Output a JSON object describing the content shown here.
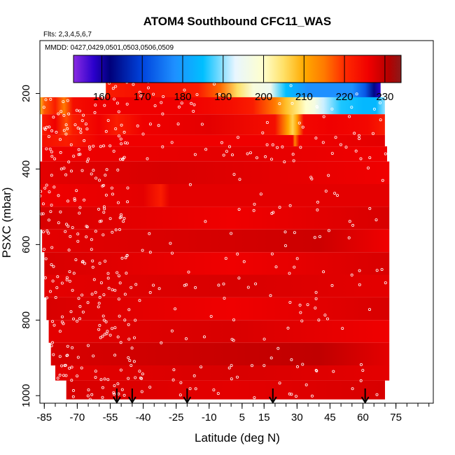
{
  "chart_data": {
    "type": "heatmap",
    "title": "ATOM4 Southbound CFC11_WAS",
    "subtitle_flights": "Flts: 2,3,4,5,6,7",
    "subtitle_dates": "MMDD: 0427,0429,0501,0503,0506,0509",
    "xlabel": "Latitude (deg N)",
    "ylabel": "PSXC (mbar)",
    "xlim": [
      -87,
      92
    ],
    "ylim": [
      1020,
      60
    ],
    "y_reversed": true,
    "x_ticks": [
      -85,
      -70,
      -55,
      -40,
      -25,
      -10,
      5,
      15,
      30,
      45,
      60,
      75
    ],
    "x_tick_labels": [
      "-85",
      "-70",
      "-55",
      "-40",
      "-25",
      "-10",
      "5",
      "15",
      "30",
      "45",
      "60",
      "75"
    ],
    "y_ticks": [
      200,
      400,
      600,
      800,
      1000
    ],
    "y_tick_labels": [
      "200",
      "400",
      "600",
      "800",
      "1000"
    ],
    "colorbar": {
      "min": 153,
      "max": 234,
      "ticks": [
        160,
        170,
        180,
        190,
        200,
        210,
        220,
        230
      ],
      "tick_labels": [
        "160",
        "170",
        "180",
        "190",
        "200",
        "210",
        "220",
        "230"
      ],
      "colors": [
        {
          "v": 153,
          "c": "#8a2be2"
        },
        {
          "v": 158,
          "c": "#2b00cc"
        },
        {
          "v": 162,
          "c": "#00007a"
        },
        {
          "v": 170,
          "c": "#0044dd"
        },
        {
          "v": 178,
          "c": "#1e90ff"
        },
        {
          "v": 185,
          "c": "#00bfff"
        },
        {
          "v": 193,
          "c": "#e8f6ff"
        },
        {
          "v": 200,
          "c": "#ffffcc"
        },
        {
          "v": 205,
          "c": "#ffe066"
        },
        {
          "v": 210,
          "c": "#ffaa00"
        },
        {
          "v": 215,
          "c": "#ff7a00"
        },
        {
          "v": 220,
          "c": "#ff2a00"
        },
        {
          "v": 226,
          "c": "#f00000"
        },
        {
          "v": 231,
          "c": "#b40000"
        },
        {
          "v": 234,
          "c": "#8b1a1a"
        }
      ]
    },
    "arrow_latitudes": [
      -52,
      -45,
      -20,
      19,
      61
    ],
    "pressure_bands": [
      {
        "p_top": 155,
        "p_bot": 210,
        "lat_min": -57,
        "lat_max": 68,
        "values": [
          [
            -57,
            222
          ],
          [
            -40,
            224
          ],
          [
            -25,
            223
          ],
          [
            -15,
            222
          ],
          [
            -5,
            216
          ],
          [
            3,
            205
          ],
          [
            10,
            198
          ],
          [
            18,
            195
          ],
          [
            25,
            185
          ],
          [
            35,
            178
          ],
          [
            45,
            178
          ],
          [
            55,
            178
          ],
          [
            61,
            172
          ],
          [
            65,
            163
          ],
          [
            68,
            158
          ]
        ]
      },
      {
        "p_top": 210,
        "p_bot": 255,
        "lat_min": -87,
        "lat_max": 70,
        "values": [
          [
            -87,
            208
          ],
          [
            -85,
            217
          ],
          [
            -80,
            222
          ],
          [
            -76,
            215
          ],
          [
            -72,
            224
          ],
          [
            -60,
            226
          ],
          [
            -40,
            226
          ],
          [
            -20,
            226
          ],
          [
            0,
            224
          ],
          [
            10,
            222
          ],
          [
            20,
            215
          ],
          [
            25,
            208
          ],
          [
            30,
            204
          ],
          [
            34,
            200
          ],
          [
            38,
            197
          ],
          [
            42,
            192
          ],
          [
            50,
            186
          ],
          [
            60,
            184
          ],
          [
            66,
            184
          ],
          [
            70,
            190
          ]
        ]
      },
      {
        "p_top": 255,
        "p_bot": 310,
        "lat_min": -86,
        "lat_max": 70,
        "values": [
          [
            -86,
            222
          ],
          [
            -80,
            226
          ],
          [
            -75,
            218
          ],
          [
            -72,
            222
          ],
          [
            -60,
            226
          ],
          [
            -52,
            222
          ],
          [
            -40,
            226
          ],
          [
            -10,
            227
          ],
          [
            20,
            224
          ],
          [
            26,
            210
          ],
          [
            28,
            206
          ],
          [
            30,
            211
          ],
          [
            33,
            225
          ],
          [
            45,
            226
          ],
          [
            62,
            225
          ],
          [
            70,
            222
          ]
        ]
      },
      {
        "p_top": 310,
        "p_bot": 340,
        "lat_min": -86,
        "lat_max": 70,
        "values": [
          [
            -86,
            224
          ],
          [
            -75,
            222
          ],
          [
            -60,
            226
          ],
          [
            28,
            226
          ],
          [
            29,
            214
          ],
          [
            31,
            226
          ],
          [
            70,
            227
          ]
        ]
      },
      {
        "p_top": 340,
        "p_bot": 380,
        "lat_min": -86,
        "lat_max": 71,
        "values": [
          [
            -86,
            226
          ],
          [
            0,
            227
          ],
          [
            71,
            226
          ]
        ]
      },
      {
        "p_top": 380,
        "p_bot": 440,
        "lat_min": -87,
        "lat_max": 72,
        "values": [
          [
            -87,
            227
          ],
          [
            -30,
            228
          ],
          [
            20,
            227
          ],
          [
            72,
            226
          ]
        ]
      },
      {
        "p_top": 440,
        "p_bot": 500,
        "lat_min": -87,
        "lat_max": 72,
        "values": [
          [
            -87,
            226
          ],
          [
            -40,
            227
          ],
          [
            -32,
            222
          ],
          [
            -28,
            227
          ],
          [
            72,
            227
          ]
        ]
      },
      {
        "p_top": 500,
        "p_bot": 560,
        "lat_min": -87,
        "lat_max": 72,
        "values": [
          [
            -87,
            228
          ],
          [
            0,
            226
          ],
          [
            72,
            228
          ]
        ]
      },
      {
        "p_top": 560,
        "p_bot": 620,
        "lat_min": -86,
        "lat_max": 72,
        "values": [
          [
            -86,
            227
          ],
          [
            40,
            229
          ],
          [
            72,
            226
          ]
        ]
      },
      {
        "p_top": 620,
        "p_bot": 680,
        "lat_min": -85,
        "lat_max": 72,
        "values": [
          [
            -85,
            228
          ],
          [
            0,
            226
          ],
          [
            72,
            228
          ]
        ]
      },
      {
        "p_top": 680,
        "p_bot": 740,
        "lat_min": -85,
        "lat_max": 72,
        "values": [
          [
            -85,
            227
          ],
          [
            0,
            228
          ],
          [
            72,
            227
          ]
        ]
      },
      {
        "p_top": 740,
        "p_bot": 800,
        "lat_min": -84,
        "lat_max": 72,
        "values": [
          [
            -84,
            228
          ],
          [
            0,
            226
          ],
          [
            72,
            228
          ]
        ]
      },
      {
        "p_top": 800,
        "p_bot": 860,
        "lat_min": -83,
        "lat_max": 72,
        "values": [
          [
            -83,
            227
          ],
          [
            0,
            228
          ],
          [
            72,
            226
          ]
        ]
      },
      {
        "p_top": 860,
        "p_bot": 920,
        "lat_min": -82,
        "lat_max": 72,
        "values": [
          [
            -82,
            228
          ],
          [
            40,
            230
          ],
          [
            72,
            227
          ]
        ]
      },
      {
        "p_top": 920,
        "p_bot": 960,
        "lat_min": -80,
        "lat_max": 72,
        "values": [
          [
            -80,
            227
          ],
          [
            0,
            228
          ],
          [
            72,
            227
          ]
        ]
      },
      {
        "p_top": 960,
        "p_bot": 1010,
        "lat_min": -75,
        "lat_max": 70,
        "values": [
          [
            -75,
            228
          ],
          [
            0,
            227
          ],
          [
            70,
            228
          ]
        ]
      }
    ]
  }
}
